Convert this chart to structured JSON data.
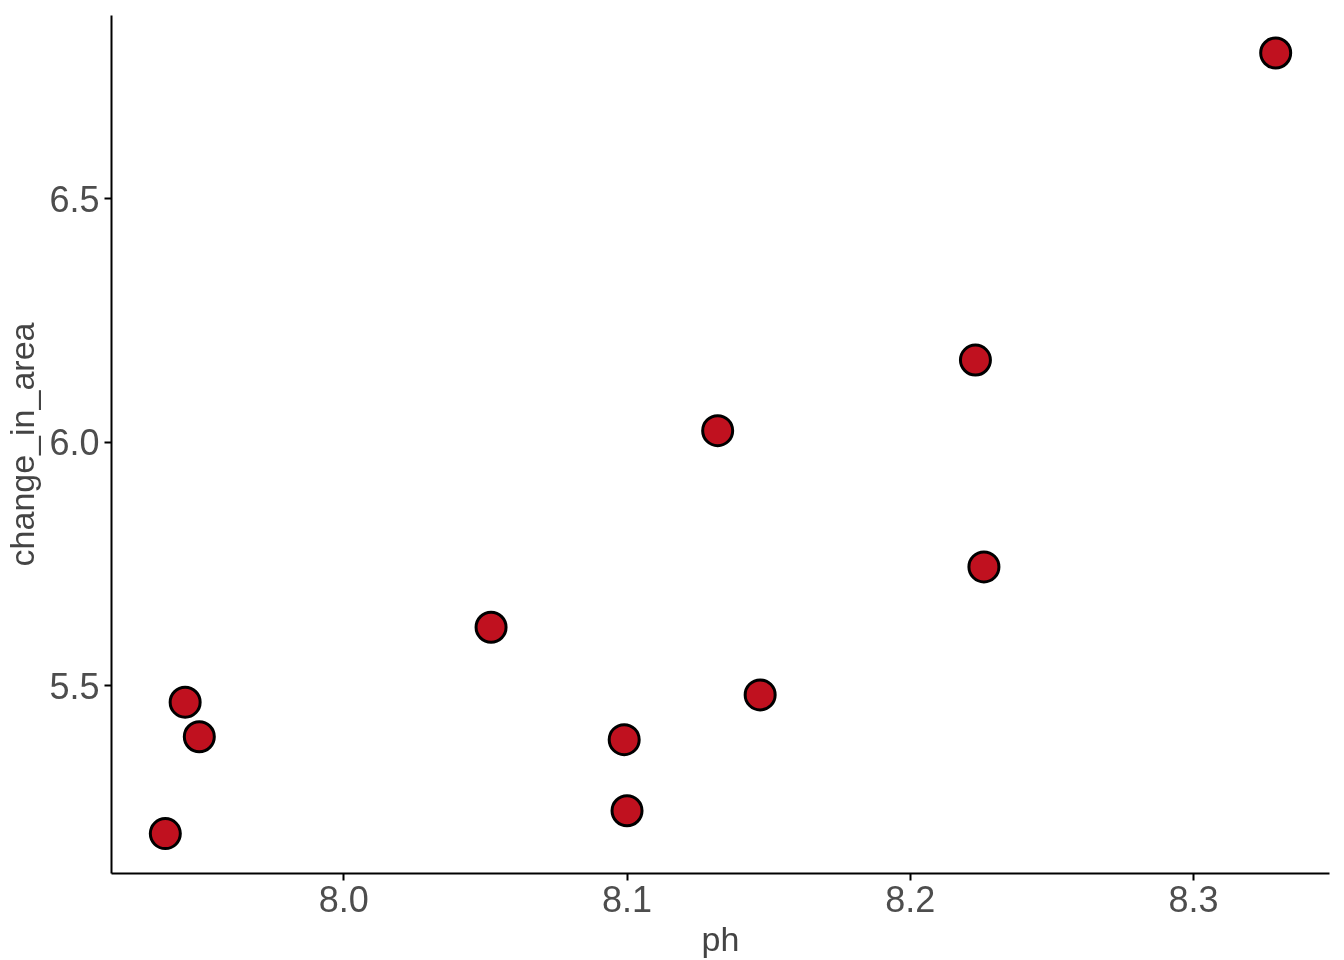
{
  "chart_data": {
    "type": "scatter",
    "xlabel": "ph",
    "ylabel": "change_in_area",
    "x": [
      7.937,
      7.944,
      7.949,
      8.052,
      8.099,
      8.1,
      8.132,
      8.147,
      8.223,
      8.226,
      8.329
    ],
    "series": [
      {
        "color": "#c0111f",
        "values": [
          5.196,
          5.466,
          5.395,
          5.62,
          5.389,
          5.243,
          6.024,
          5.481,
          6.169,
          5.744,
          6.8
        ]
      }
    ],
    "xlim": [
      7.918,
      8.348
    ],
    "ylim": [
      5.114,
      6.877
    ],
    "xticks": [
      {
        "value": 8.0,
        "label": "8.0"
      },
      {
        "value": 8.1,
        "label": "8.1"
      },
      {
        "value": 8.2,
        "label": "8.2"
      },
      {
        "value": 8.3,
        "label": "8.3"
      }
    ],
    "yticks": [
      {
        "value": 5.5,
        "label": "5.5"
      },
      {
        "value": 6.0,
        "label": "6.0"
      },
      {
        "value": 6.5,
        "label": "6.5"
      }
    ],
    "grid": false,
    "marker": "circle"
  }
}
